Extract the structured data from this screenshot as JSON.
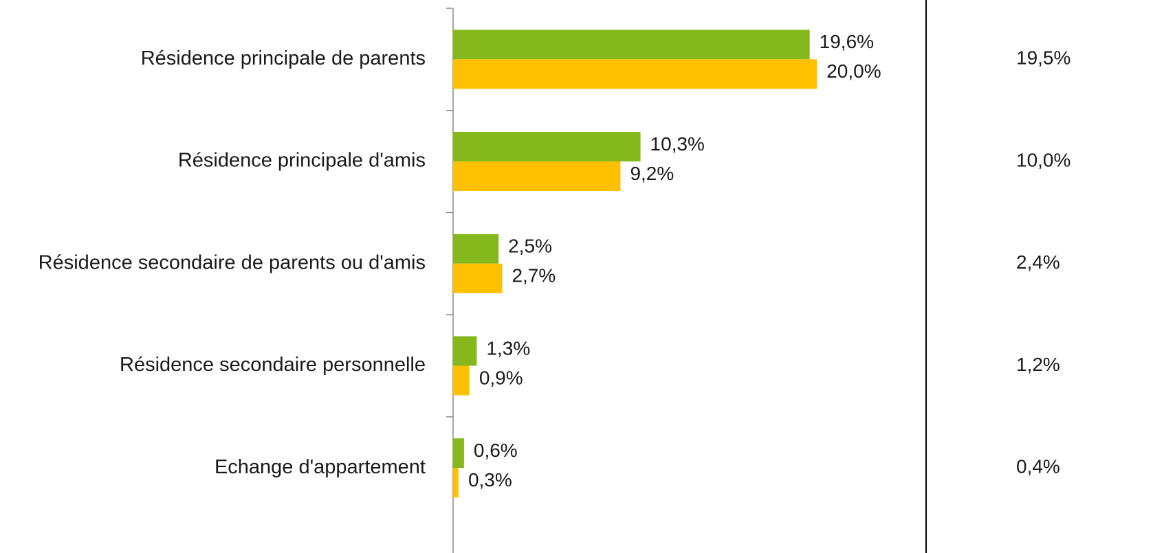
{
  "chart_data": {
    "type": "bar",
    "orientation": "horizontal",
    "categories": [
      "Résidence principale de parents",
      "Résidence principale d'amis",
      "Résidence secondaire de parents ou d'amis",
      "Résidence secondaire personnelle",
      "Echange d'appartement"
    ],
    "series": [
      {
        "color": "#84b81c",
        "values": [
          19.6,
          10.3,
          2.5,
          1.3,
          0.6
        ],
        "value_labels": [
          "19,6%",
          "10,3%",
          "2,5%",
          "1,3%",
          "0,6%"
        ]
      },
      {
        "color": "#ffc000",
        "values": [
          20.0,
          9.2,
          2.7,
          0.9,
          0.3
        ],
        "value_labels": [
          "20,0%",
          "9,2%",
          "2,7%",
          "0,9%",
          "0,3%"
        ]
      }
    ],
    "column_values": [
      19.5,
      10.0,
      2.4,
      1.2,
      0.4
    ],
    "column_value_labels": [
      "19,5%",
      "10,0%",
      "2,4%",
      "1,2%",
      "0,4%"
    ],
    "xlim": [
      0,
      26
    ]
  }
}
